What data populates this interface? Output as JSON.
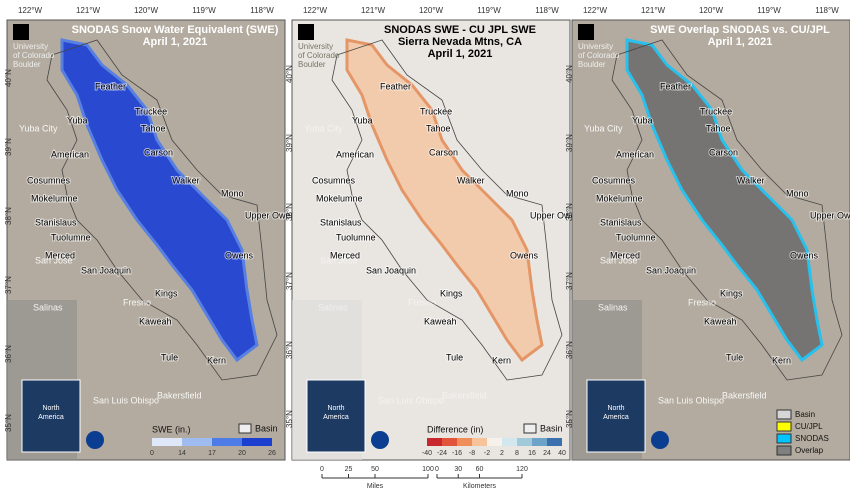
{
  "panels": [
    {
      "title": [
        "SNODAS Snow Water Equivalent (SWE)",
        "April 1, 2021"
      ],
      "legend": {
        "kind": "colorbar",
        "label": "SWE (in.)",
        "ticks": [
          0,
          14,
          17,
          20,
          26
        ],
        "colors": [
          "#dfe8f8",
          "#9fbcf0",
          "#4d7ce6",
          "#1c3fd0"
        ],
        "basin": "Basin"
      },
      "style": "snodas"
    },
    {
      "title": [
        "SNODAS SWE - CU JPL SWE",
        "Sierra Nevada Mtns, CA",
        "April 1, 2021"
      ],
      "legend": {
        "kind": "colorbar",
        "label": "Difference (in)",
        "ticks": [
          -40,
          -24,
          -16,
          -8,
          -2,
          2,
          8,
          16,
          24,
          40
        ],
        "colors": [
          "#c8282d",
          "#e2553a",
          "#f08e5a",
          "#f6c39a",
          "#f6f1ea",
          "#d3e7ee",
          "#a0c9da",
          "#6ea3c9",
          "#3b6fae"
        ],
        "basin": "Basin"
      },
      "style": "difference"
    },
    {
      "title": [
        "SWE Overlap SNODAS vs. CU/JPL",
        "April 1, 2021"
      ],
      "legend": {
        "kind": "classes",
        "items": [
          {
            "name": "Basin",
            "color": "#d6d6d6"
          },
          {
            "name": "CU/JPL",
            "color": "#ffff00"
          },
          {
            "name": "SNODAS",
            "color": "#00c5ff"
          },
          {
            "name": "Overlap",
            "color": "#7f7f7f"
          }
        ]
      },
      "style": "overlap"
    }
  ],
  "longitudes": [
    "122°W",
    "121°W",
    "120°W",
    "119°W",
    "118°W"
  ],
  "latitudes": [
    "40°N",
    "39°N",
    "38°N",
    "37°N",
    "36°N",
    "35°N"
  ],
  "logo": [
    "University",
    "of Colorado",
    "Boulder"
  ],
  "inset_label": [
    "North",
    "America"
  ],
  "basins": [
    "Feather",
    "Truckee",
    "Yuba",
    "Tahoe",
    "Carson",
    "American",
    "Cosumnes",
    "Walker",
    "Mokelumne",
    "Mono",
    "Stanislaus",
    "Upper Owens",
    "Tuolumne",
    "Merced",
    "Owens",
    "San Joaquin",
    "Kings",
    "Kaweah",
    "Tule",
    "Kern"
  ],
  "cities": [
    "Yuba City",
    "San Jose",
    "Salinas",
    "Fresno",
    "San Luis Obispo",
    "Bakersfield"
  ],
  "scale": {
    "miles": {
      "label": "Miles",
      "ticks": [
        0,
        25,
        50,
        100
      ]
    },
    "kilometers": {
      "label": "Kilometers",
      "ticks": [
        0,
        30,
        60,
        120
      ]
    }
  }
}
